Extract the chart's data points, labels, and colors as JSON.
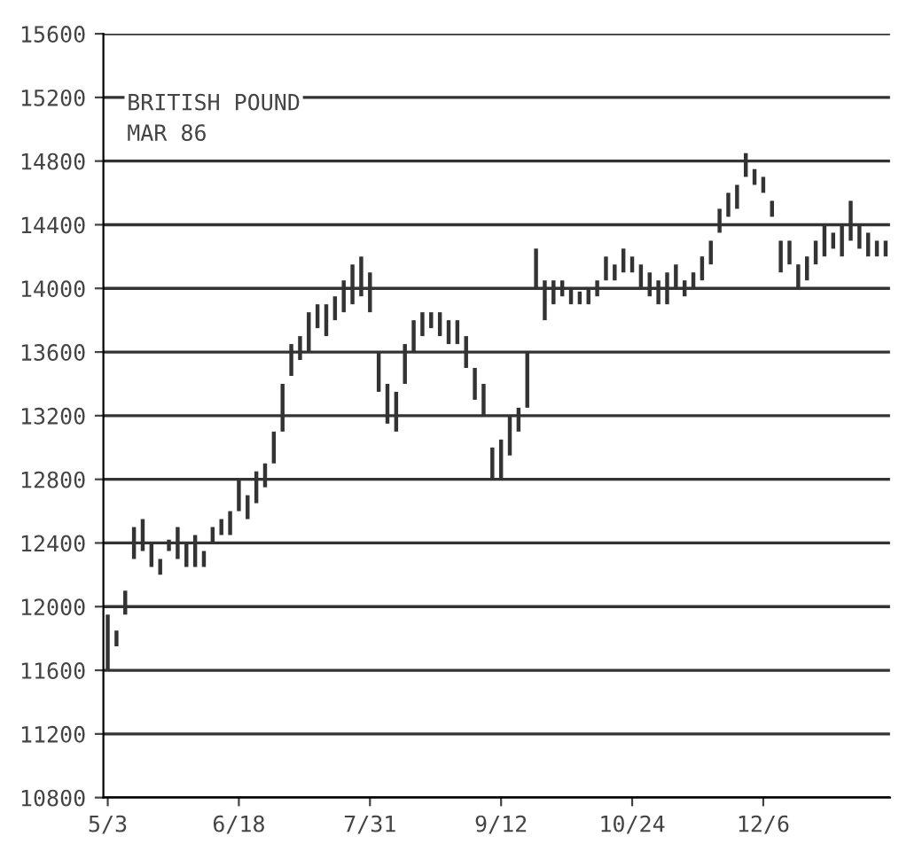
{
  "chart_data": {
    "type": "bar",
    "title": "BRITISH POUND",
    "subtitle": "MAR 86",
    "color": "#333333",
    "categories": [
      "5/3",
      null,
      null,
      null,
      null,
      null,
      null,
      null,
      null,
      null,
      null,
      null,
      null,
      null,
      null,
      "6/18",
      null,
      null,
      null,
      null,
      null,
      null,
      null,
      null,
      null,
      null,
      null,
      null,
      null,
      null,
      "7/31",
      null,
      null,
      null,
      null,
      null,
      null,
      null,
      null,
      null,
      null,
      null,
      null,
      null,
      null,
      "9/12",
      null,
      null,
      null,
      null,
      null,
      null,
      null,
      null,
      null,
      null,
      null,
      null,
      null,
      null,
      "10/24",
      null,
      null,
      null,
      null,
      null,
      null,
      null,
      null,
      null,
      null,
      null,
      null,
      null,
      null,
      "12/6",
      null,
      null,
      null,
      null,
      null,
      null,
      null,
      null,
      null,
      null,
      null,
      null,
      null,
      null
    ],
    "base": [
      11600,
      11750,
      11950,
      12300,
      12350,
      12250,
      12200,
      12350,
      12300,
      12250,
      12250,
      12250,
      12400,
      12450,
      12450,
      12600,
      12550,
      12650,
      12750,
      12900,
      13100,
      13450,
      13550,
      13600,
      13750,
      13700,
      13800,
      13850,
      13900,
      13950,
      13850,
      13350,
      13150,
      13100,
      13400,
      13600,
      13700,
      13750,
      13700,
      13650,
      13650,
      13500,
      13300,
      13200,
      12800,
      12800,
      12950,
      13100,
      13250,
      14000,
      13800,
      13900,
      13950,
      13900,
      13900,
      13900,
      13950,
      14050,
      14050,
      14100,
      14100,
      14000,
      13950,
      13900,
      13900,
      14000,
      13950,
      14000,
      14050,
      14150,
      14350,
      14450,
      14500,
      14700,
      14650,
      14600,
      14450,
      14100,
      14150,
      14000,
      14050,
      14150,
      14200,
      14250,
      14200,
      14300,
      14250,
      14200,
      14200,
      14200
    ],
    "values": [
      350,
      100,
      150,
      200,
      200,
      150,
      100,
      70,
      200,
      150,
      200,
      100,
      100,
      100,
      150,
      200,
      150,
      200,
      150,
      200,
      300,
      200,
      150,
      250,
      150,
      200,
      150,
      200,
      250,
      250,
      250,
      250,
      250,
      250,
      250,
      200,
      150,
      100,
      150,
      150,
      150,
      200,
      200,
      200,
      200,
      250,
      250,
      150,
      350,
      250,
      250,
      150,
      100,
      100,
      80,
      100,
      100,
      150,
      100,
      150,
      100,
      150,
      150,
      150,
      200,
      150,
      100,
      100,
      150,
      150,
      150,
      150,
      150,
      150,
      100,
      100,
      100,
      200,
      150,
      150,
      150,
      150,
      200,
      100,
      200,
      250,
      150,
      150,
      100,
      100
    ],
    "ylim": [
      10800,
      15600
    ],
    "yticks": [
      10800,
      11200,
      11600,
      12000,
      12400,
      12800,
      13200,
      13600,
      14000,
      14400,
      14800,
      15200,
      15600
    ],
    "grid": "y"
  }
}
